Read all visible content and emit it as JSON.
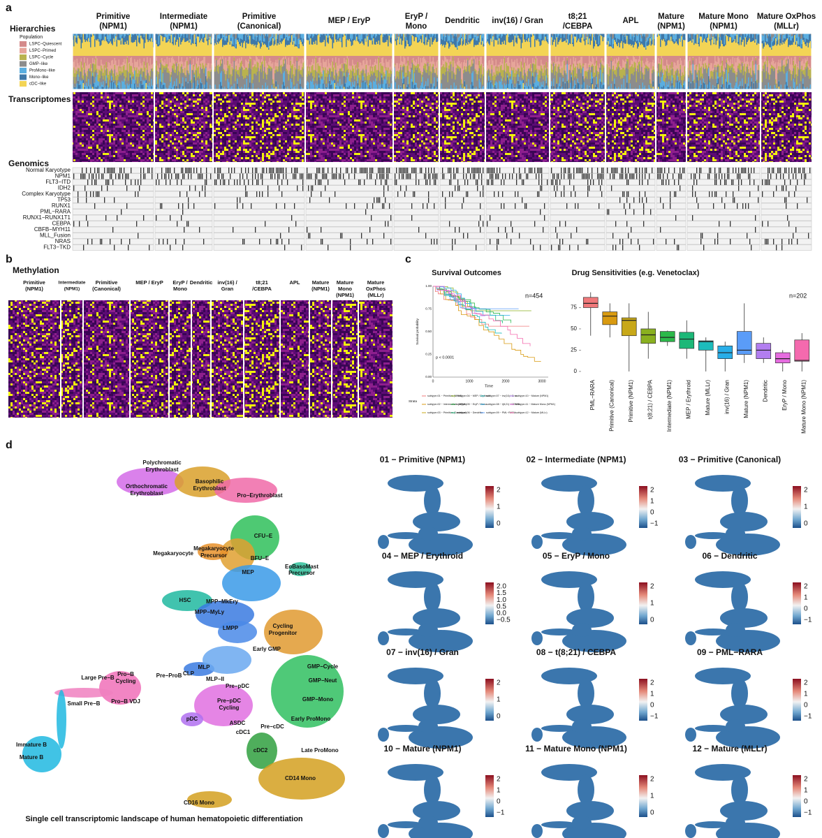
{
  "panel_a": {
    "label": "a",
    "row_titles": [
      "Hierarchies",
      "Transcriptomes",
      "Genomics"
    ],
    "legend_title": "Population",
    "legend": [
      "LSPC−Quiescent",
      "LSPC−Primed",
      "LSPC−Cycle",
      "GMP−like",
      "ProMono−like",
      "Mono−like",
      "cDC−like"
    ],
    "legend_colors": [
      "#d48a8a",
      "#e6a59a",
      "#b9b24e",
      "#8c8c8c",
      "#5aaee0",
      "#3f78a8",
      "#f3d455"
    ],
    "groups": [
      [
        "Primitive",
        "(NPM1)"
      ],
      [
        "Intermediate",
        "(NPM1)"
      ],
      [
        "Primitive",
        "(Canonical)"
      ],
      [
        "MEP / EryP"
      ],
      [
        "EryP /",
        "Mono"
      ],
      [
        "Dendritic"
      ],
      [
        "inv(16) / Gran"
      ],
      [
        "t8;21",
        "/CEBPA"
      ],
      [
        "APL"
      ],
      [
        "Mature",
        "(NPM1)"
      ],
      [
        "Mature Mono",
        "(NPM1)"
      ],
      [
        "Mature OxPhos",
        "(MLLr)"
      ]
    ],
    "genomics_rows": [
      "Normal Karyotype",
      "NPM1",
      "FLT3−ITD",
      "IDH2",
      "Complex Karyotype",
      "TP53",
      "RUNX1",
      "PML−RARA",
      "RUNX1−RUNX1T1",
      "CEBPA",
      "CBFB−MYH11",
      "MLL_Fusion",
      "NRAS",
      "FLT3−TKD"
    ]
  },
  "panel_b": {
    "label": "b",
    "title": "Methylation",
    "groups": [
      [
        "Primitive",
        "(NPM1)"
      ],
      [
        "Intermediate",
        "(NPM1)"
      ],
      [
        "Primitive",
        "(Canonical)"
      ],
      [
        "MEP / EryP"
      ],
      [
        "EryP /",
        "Mono"
      ],
      [
        "Dendritic"
      ],
      [
        "inv(16) /",
        "Gran"
      ],
      [
        "t8;21",
        "/CEBPA"
      ],
      [
        "APL"
      ],
      [
        "Mature",
        "(NPM1)"
      ],
      [
        "Mature",
        "Mono",
        "(NPM1)"
      ],
      [
        "Mature",
        "OxPhos",
        "(MLLr)"
      ]
    ]
  },
  "panel_c": {
    "label": "c",
    "survival": {
      "title": "Survival Outcomes",
      "annotation": "n=454",
      "p_value": "p < 0.0001",
      "xlabel": "Time",
      "ylabel": "Survival probability",
      "xticks": [
        "0",
        "1000",
        "2000",
        "3000"
      ],
      "yticks": [
        "1.00",
        "0.75",
        "0.50",
        "0.25",
        "0.00"
      ],
      "legend_title": "Strata",
      "legend": [
        "subtype=01 − Primitive (NPM1)",
        "subtype=02 − Intermediate (NPM1)",
        "subtype=03 − Primitive (Canonical)",
        "subtype=04 − MEP / Erythroid",
        "subtype=05 − EryP / Mono",
        "subtype=06 − Dendritic",
        "subtype=07 − inv(16) / Gran",
        "subtype=08 − t(8;21) / CEBPA",
        "subtype=09 − PML−RARA",
        "subtype=10 − Mature (NPM1)",
        "subtype=11 − Mature Mono (NPM1)",
        "subtype=12 − Mature (MLLr)"
      ]
    }
  },
  "chart_data": {
    "type": "box",
    "title": "Drug Sensitivities (e.g. Venetoclax)",
    "annotation": "n=202",
    "categories": [
      "PML−RARA",
      "Primitive (Canonical)",
      "Primitive (NPM1)",
      "t(8;21) / CEBPA",
      "Intermediate (NPM1)",
      "MEP / Erythroid",
      "Mature (MLLr)",
      "inv(16) / Gran",
      "Mature (NPM1)",
      "Dendritic",
      "EryP / Mono",
      "Mature Mono (NPM1)"
    ],
    "min": [
      42,
      40,
      0,
      15,
      30,
      15,
      0,
      0,
      10,
      10,
      0,
      0
    ],
    "q1": [
      75,
      55,
      42,
      33,
      35,
      27,
      25,
      15,
      20,
      15,
      10,
      12
    ],
    "median": [
      80,
      65,
      60,
      43,
      40,
      38,
      35,
      22,
      25,
      25,
      15,
      13
    ],
    "q3": [
      87,
      70,
      63,
      50,
      47,
      46,
      36,
      30,
      47,
      33,
      22,
      37
    ],
    "max": [
      93,
      80,
      80,
      70,
      48,
      60,
      40,
      35,
      80,
      40,
      25,
      45
    ],
    "colors": [
      "#f0787a",
      "#d99a10",
      "#c8a818",
      "#8ab020",
      "#2cb84a",
      "#1cb878",
      "#1cbcbc",
      "#28aee8",
      "#5a9cf8",
      "#b27ef0",
      "#e66ce0",
      "#f46aae"
    ],
    "ylim": [
      -5,
      100
    ],
    "yticks": [
      0,
      25,
      50,
      75
    ]
  },
  "panel_d": {
    "label": "d",
    "caption": "Single cell transcriptomic landscape of human hematopoietic differentiation",
    "cell_types": [
      "Polychromatic",
      "Erythroblast",
      "Orthochromatic",
      "Erythroblast",
      "Basophilic",
      "Erythroblast",
      "Pro−Erythroblast",
      "CFU−E",
      "BFU−E",
      "Megakaryocyte",
      "Precursor",
      "Megakaryocyte",
      "EoBasoMast",
      "Precursor",
      "MEP",
      "HSC",
      "MPP−MkEry",
      "MPP−MyLy",
      "Cycling",
      "Progenitor",
      "LMPP",
      "Early GMP",
      "GMP−Cycle",
      "GMP−Neut",
      "MLP",
      "CLP",
      "Pro−B",
      "Cycling",
      "Large Pre−B",
      "Pre−ProB",
      "MLP−II",
      "Pre−pDC",
      "Pro−B VDJ",
      "Small Pre−B",
      "GMP−Mono",
      "Pre−pDC",
      "Cycling",
      "pDC",
      "ASDC",
      "Pre−cDC",
      "Early ProMono",
      "cDC1",
      "Immature B",
      "Mature B",
      "cDC2",
      "Late ProMono",
      "CD14 Mono",
      "CD16 Mono"
    ],
    "subtypes": [
      {
        "title": "01 − Primitive (NPM1)",
        "scale": [
          "2",
          "1",
          "0"
        ]
      },
      {
        "title": "02 − Intermediate (NPM1)",
        "scale": [
          "2",
          "1",
          "0",
          "−1"
        ]
      },
      {
        "title": "03 − Primitive (Canonical)",
        "scale": [
          "2",
          "1",
          "0"
        ]
      },
      {
        "title": "04 − MEP / Erythroid",
        "scale": [
          "2.0",
          "1.5",
          "1.0",
          "0.5",
          "0.0",
          "−0.5"
        ]
      },
      {
        "title": "05 − EryP / Mono",
        "scale": [
          "2",
          "1",
          "0"
        ]
      },
      {
        "title": "06 − Dendritic",
        "scale": [
          "2",
          "1",
          "0",
          "−1"
        ]
      },
      {
        "title": "07 − inv(16) / Gran",
        "scale": [
          "2",
          "1",
          "0"
        ]
      },
      {
        "title": "08 − t(8;21) / CEBPA",
        "scale": [
          "2",
          "1",
          "0",
          "−1"
        ]
      },
      {
        "title": "09 − PML−RARA",
        "scale": [
          "2",
          "1",
          "0",
          "−1"
        ]
      },
      {
        "title": "10 − Mature (NPM1)",
        "scale": [
          "2",
          "1",
          "0",
          "−1"
        ]
      },
      {
        "title": "11 − Mature Mono (NPM1)",
        "scale": [
          "2",
          "1",
          "0"
        ]
      },
      {
        "title": "12 − Mature (MLLr)",
        "scale": [
          "2",
          "1",
          "0",
          "−1"
        ]
      }
    ]
  }
}
